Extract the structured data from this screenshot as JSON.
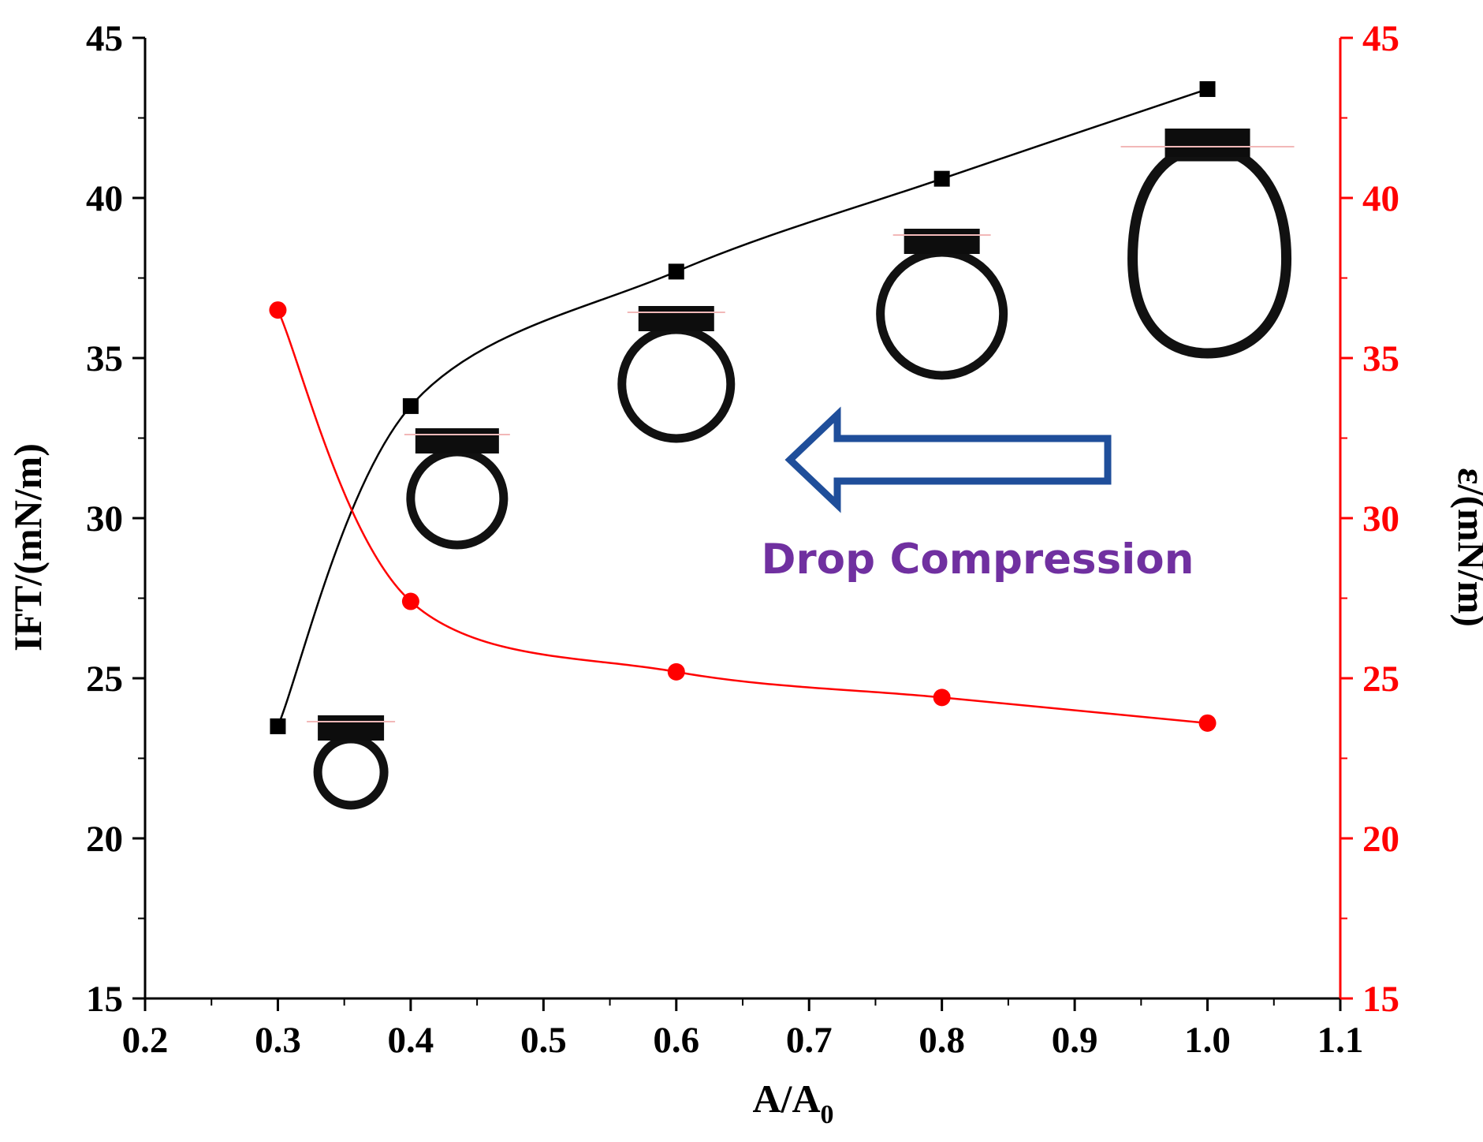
{
  "chart_data": {
    "type": "line",
    "title": "",
    "xlabel_main": "A/A",
    "xlabel_sub": "0",
    "ylabel_left": "IFT/(mN/m)",
    "ylabel_right": "ε/(mN/m)",
    "xlim": [
      0.2,
      1.1
    ],
    "ylim_left": [
      15,
      45
    ],
    "ylim_right": [
      15,
      45
    ],
    "x_ticks": [
      "0.2",
      "0.3",
      "0.4",
      "0.5",
      "0.6",
      "0.7",
      "0.8",
      "0.9",
      "1.0",
      "1.1"
    ],
    "y_ticks": [
      "15",
      "20",
      "25",
      "30",
      "35",
      "40",
      "45"
    ],
    "grid": false,
    "series": [
      {
        "name": "IFT",
        "axis": "left",
        "marker": "square",
        "color": "#000000",
        "x": [
          0.3,
          0.4,
          0.6,
          0.8,
          1.0
        ],
        "values": [
          23.5,
          33.5,
          37.7,
          40.6,
          43.4
        ]
      },
      {
        "name": "ε",
        "axis": "right",
        "marker": "circle",
        "color": "#ff0000",
        "x": [
          0.3,
          0.4,
          0.6,
          0.8,
          1.0
        ],
        "values": [
          36.5,
          27.4,
          25.2,
          24.4,
          23.6
        ]
      }
    ],
    "annotation": {
      "text": "Drop Compression",
      "color": "#7030a0",
      "arrow_color": "#1f4e9a",
      "arrow_direction": "left"
    },
    "drop_images": [
      {
        "x": 0.355,
        "size": "small"
      },
      {
        "x": 0.435,
        "size": "small-medium"
      },
      {
        "x": 0.6,
        "size": "medium"
      },
      {
        "x": 0.8,
        "size": "medium-large"
      },
      {
        "x": 1.0,
        "size": "large"
      }
    ]
  }
}
